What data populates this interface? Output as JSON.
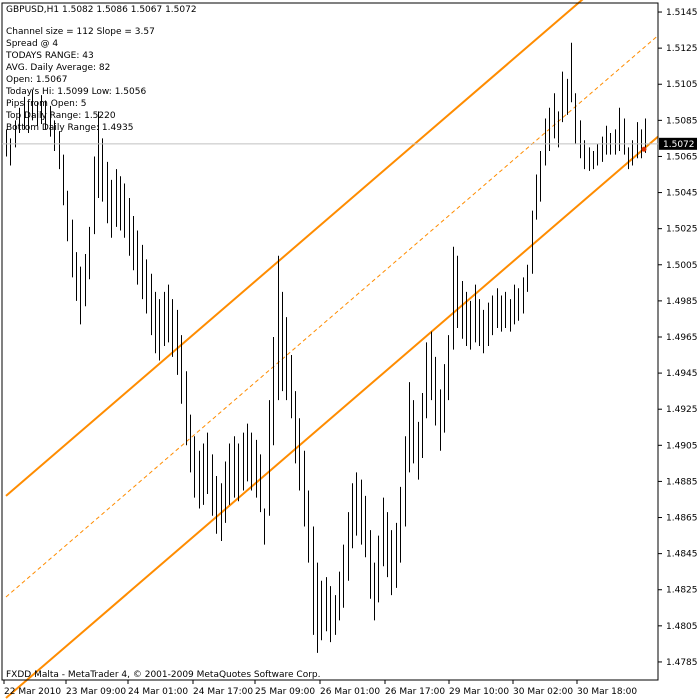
{
  "chart_data": {
    "type": "candlestick",
    "title": "GBPUSD,H1  1.5082 1.5086 1.5067 1.5072",
    "info_lines": [
      "Channel size = 112 Slope = 3.57",
      "Spread @ 4",
      "TODAYS RANGE: 43",
      "AVG. Daily Average: 82",
      "Open: 1.5067",
      "Today's Hi: 1.5099  Low: 1.5056",
      "Pips from Open: 5",
      "Top Daily Range: 1.5220",
      "Bottom Daily Range: 1.4935"
    ],
    "footer": "FXDD Malta - MetaTrader 4, © 2001-2009 MetaQuotes Software Corp.",
    "current_price": "1.5072",
    "current_price_value": 1.5072,
    "ylim": [
      1.4775,
      1.515
    ],
    "y_ticks": [
      1.5145,
      1.5125,
      1.5105,
      1.5085,
      1.5065,
      1.5045,
      1.5025,
      1.5005,
      1.4985,
      1.4965,
      1.4945,
      1.4925,
      1.4905,
      1.4885,
      1.4865,
      1.4845,
      1.4825,
      1.4805,
      1.4785
    ],
    "y_tick_labels": [
      "1.5145",
      "1.5125",
      "1.5105",
      "1.5085",
      "1.5065",
      "1.5045",
      "1.5025",
      "1.5005",
      "1.4985",
      "1.4965",
      "1.4945",
      "1.4925",
      "1.4905",
      "1.4885",
      "1.4865",
      "1.4845",
      "1.4825",
      "1.4805",
      "1.4785"
    ],
    "x_tick_labels": [
      "22 Mar 2010",
      "23 Mar 09:00",
      "24 Mar 01:00",
      "24 Mar 17:00",
      "25 Mar 09:00",
      "26 Mar 01:00",
      "26 Mar 17:00",
      "29 Mar 10:00",
      "30 Mar 02:00",
      "30 Mar 18:00"
    ],
    "bars": [
      {
        "h": 1.508,
        "l": 1.5065
      },
      {
        "h": 1.5075,
        "l": 1.506
      },
      {
        "h": 1.5085,
        "l": 1.507
      },
      {
        "h": 1.5092,
        "l": 1.5078
      },
      {
        "h": 1.5098,
        "l": 1.508
      },
      {
        "h": 1.5095,
        "l": 1.5078
      },
      {
        "h": 1.5102,
        "l": 1.5085
      },
      {
        "h": 1.5095,
        "l": 1.5082
      },
      {
        "h": 1.5099,
        "l": 1.5083
      },
      {
        "h": 1.5096,
        "l": 1.508
      },
      {
        "h": 1.5093,
        "l": 1.5076
      },
      {
        "h": 1.5085,
        "l": 1.5068
      },
      {
        "h": 1.5079,
        "l": 1.5058
      },
      {
        "h": 1.5066,
        "l": 1.5038
      },
      {
        "h": 1.5046,
        "l": 1.5018
      },
      {
        "h": 1.503,
        "l": 1.4998
      },
      {
        "h": 1.5012,
        "l": 1.4985
      },
      {
        "h": 1.5004,
        "l": 1.4972
      },
      {
        "h": 1.5011,
        "l": 1.4982
      },
      {
        "h": 1.5026,
        "l": 1.4997
      },
      {
        "h": 1.5065,
        "l": 1.5022
      },
      {
        "h": 1.509,
        "l": 1.5042
      },
      {
        "h": 1.5075,
        "l": 1.504
      },
      {
        "h": 1.5062,
        "l": 1.5028
      },
      {
        "h": 1.5052,
        "l": 1.502
      },
      {
        "h": 1.5058,
        "l": 1.5026
      },
      {
        "h": 1.5054,
        "l": 1.5024
      },
      {
        "h": 1.505,
        "l": 1.502
      },
      {
        "h": 1.5042,
        "l": 1.501
      },
      {
        "h": 1.5032,
        "l": 1.5002
      },
      {
        "h": 1.5024,
        "l": 1.4994
      },
      {
        "h": 1.5016,
        "l": 1.4986
      },
      {
        "h": 1.5008,
        "l": 1.4978
      },
      {
        "h": 1.5,
        "l": 1.4966
      },
      {
        "h": 1.499,
        "l": 1.4956
      },
      {
        "h": 1.4986,
        "l": 1.4952
      },
      {
        "h": 1.499,
        "l": 1.496
      },
      {
        "h": 1.4994,
        "l": 1.4962
      },
      {
        "h": 1.4986,
        "l": 1.4954
      },
      {
        "h": 1.498,
        "l": 1.4944
      },
      {
        "h": 1.4966,
        "l": 1.4928
      },
      {
        "h": 1.4946,
        "l": 1.4905
      },
      {
        "h": 1.4922,
        "l": 1.489
      },
      {
        "h": 1.491,
        "l": 1.4876
      },
      {
        "h": 1.4902,
        "l": 1.487
      },
      {
        "h": 1.4906,
        "l": 1.4872
      },
      {
        "h": 1.4912,
        "l": 1.4878
      },
      {
        "h": 1.49,
        "l": 1.4866
      },
      {
        "h": 1.4888,
        "l": 1.4856
      },
      {
        "h": 1.4884,
        "l": 1.4852
      },
      {
        "h": 1.4896,
        "l": 1.4862
      },
      {
        "h": 1.4906,
        "l": 1.4872
      },
      {
        "h": 1.491,
        "l": 1.4876
      },
      {
        "h": 1.4906,
        "l": 1.4874
      },
      {
        "h": 1.4912,
        "l": 1.488
      },
      {
        "h": 1.4917,
        "l": 1.4885
      },
      {
        "h": 1.4912,
        "l": 1.488
      },
      {
        "h": 1.4908,
        "l": 1.4876
      },
      {
        "h": 1.49,
        "l": 1.4868
      },
      {
        "h": 1.487,
        "l": 1.485
      },
      {
        "h": 1.493,
        "l": 1.4866
      },
      {
        "h": 1.4965,
        "l": 1.4905
      },
      {
        "h": 1.501,
        "l": 1.493
      },
      {
        "h": 1.499,
        "l": 1.4935
      },
      {
        "h": 1.4976,
        "l": 1.493
      },
      {
        "h": 1.4955,
        "l": 1.492
      },
      {
        "h": 1.4935,
        "l": 1.4895
      },
      {
        "h": 1.492,
        "l": 1.488
      },
      {
        "h": 1.4902,
        "l": 1.486
      },
      {
        "h": 1.488,
        "l": 1.484
      },
      {
        "h": 1.486,
        "l": 1.48
      },
      {
        "h": 1.484,
        "l": 1.479
      },
      {
        "h": 1.483,
        "l": 1.4797
      },
      {
        "h": 1.4832,
        "l": 1.4802
      },
      {
        "h": 1.4827,
        "l": 1.4796
      },
      {
        "h": 1.4822,
        "l": 1.48
      },
      {
        "h": 1.4835,
        "l": 1.4808
      },
      {
        "h": 1.485,
        "l": 1.4815
      },
      {
        "h": 1.4868,
        "l": 1.483
      },
      {
        "h": 1.4884,
        "l": 1.4848
      },
      {
        "h": 1.489,
        "l": 1.4855
      },
      {
        "h": 1.4886,
        "l": 1.485
      },
      {
        "h": 1.4877,
        "l": 1.4843
      },
      {
        "h": 1.4858,
        "l": 1.482
      },
      {
        "h": 1.484,
        "l": 1.4808
      },
      {
        "h": 1.4855,
        "l": 1.4818
      },
      {
        "h": 1.4876,
        "l": 1.4838
      },
      {
        "h": 1.4868,
        "l": 1.4832
      },
      {
        "h": 1.4858,
        "l": 1.4822
      },
      {
        "h": 1.4862,
        "l": 1.4826
      },
      {
        "h": 1.4882,
        "l": 1.484
      },
      {
        "h": 1.491,
        "l": 1.486
      },
      {
        "h": 1.494,
        "l": 1.489
      },
      {
        "h": 1.493,
        "l": 1.4895
      },
      {
        "h": 1.4918,
        "l": 1.4886
      },
      {
        "h": 1.4934,
        "l": 1.4898
      },
      {
        "h": 1.4962,
        "l": 1.492
      },
      {
        "h": 1.4968,
        "l": 1.493
      },
      {
        "h": 1.4954,
        "l": 1.4916
      },
      {
        "h": 1.4936,
        "l": 1.4902
      },
      {
        "h": 1.495,
        "l": 1.4912
      },
      {
        "h": 1.4966,
        "l": 1.493
      },
      {
        "h": 1.5015,
        "l": 1.4958
      },
      {
        "h": 1.501,
        "l": 1.497
      },
      {
        "h": 1.4996,
        "l": 1.4964
      },
      {
        "h": 1.499,
        "l": 1.496
      },
      {
        "h": 1.4985,
        "l": 1.4958
      },
      {
        "h": 1.4994,
        "l": 1.4962
      },
      {
        "h": 1.4986,
        "l": 1.496
      },
      {
        "h": 1.498,
        "l": 1.4956
      },
      {
        "h": 1.4984,
        "l": 1.496
      },
      {
        "h": 1.4988,
        "l": 1.4966
      },
      {
        "h": 1.4992,
        "l": 1.497
      },
      {
        "h": 1.4988,
        "l": 1.4968
      },
      {
        "h": 1.499,
        "l": 1.497
      },
      {
        "h": 1.4986,
        "l": 1.4968
      },
      {
        "h": 1.4994,
        "l": 1.4972
      },
      {
        "h": 1.4992,
        "l": 1.4974
      },
      {
        "h": 1.4998,
        "l": 1.4978
      },
      {
        "h": 1.5005,
        "l": 1.499
      },
      {
        "h": 1.5035,
        "l": 1.5
      },
      {
        "h": 1.5055,
        "l": 1.503
      },
      {
        "h": 1.5068,
        "l": 1.504
      },
      {
        "h": 1.5086,
        "l": 1.506
      },
      {
        "h": 1.5092,
        "l": 1.5068
      },
      {
        "h": 1.51,
        "l": 1.5075
      },
      {
        "h": 1.509,
        "l": 1.507
      },
      {
        "h": 1.5112,
        "l": 1.5084
      },
      {
        "h": 1.5108,
        "l": 1.5088
      },
      {
        "h": 1.5128,
        "l": 1.5095
      },
      {
        "h": 1.51,
        "l": 1.5072
      },
      {
        "h": 1.5085,
        "l": 1.5064
      },
      {
        "h": 1.5074,
        "l": 1.5058
      },
      {
        "h": 1.507,
        "l": 1.5057
      },
      {
        "h": 1.5068,
        "l": 1.5058
      },
      {
        "h": 1.5072,
        "l": 1.506
      },
      {
        "h": 1.5076,
        "l": 1.5062
      },
      {
        "h": 1.5082,
        "l": 1.5066
      },
      {
        "h": 1.5078,
        "l": 1.5066
      },
      {
        "h": 1.508,
        "l": 1.5066
      },
      {
        "h": 1.5092,
        "l": 1.5068
      },
      {
        "h": 1.5086,
        "l": 1.5066
      },
      {
        "h": 1.507,
        "l": 1.5058
      },
      {
        "h": 1.5074,
        "l": 1.506
      },
      {
        "h": 1.5084,
        "l": 1.5064
      },
      {
        "h": 1.508,
        "l": 1.5064
      },
      {
        "h": 1.5086,
        "l": 1.5067
      }
    ],
    "channel": {
      "start_price": 1.4765,
      "end_price": 1.507,
      "width": 0.0112,
      "color": "#ff8c00"
    },
    "marker_color": "#e03000",
    "grid": false,
    "legend": "none"
  }
}
